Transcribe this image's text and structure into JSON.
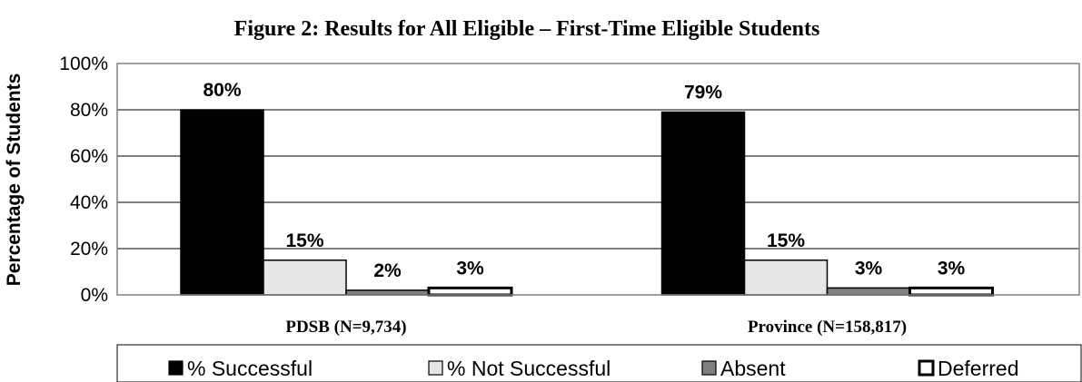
{
  "chart_data": {
    "type": "bar",
    "title": "Figure 2:  Results for All Eligible – First-Time Eligible Students",
    "xlabel": "",
    "ylabel": "Percentage of Students",
    "ylim": [
      0,
      100
    ],
    "yticks": [
      "0%",
      "20%",
      "40%",
      "60%",
      "80%",
      "100%"
    ],
    "grid": true,
    "legend_position": "bottom",
    "categories": [
      "PDSB (N=9,734)",
      "Province (N=158,817)"
    ],
    "series": [
      {
        "name": "% Successful",
        "values": [
          80,
          79
        ],
        "labels": [
          "80%",
          "79%"
        ],
        "color": "#000000",
        "border": "#000000"
      },
      {
        "name": "% Not Successful",
        "values": [
          15,
          15
        ],
        "labels": [
          "15%",
          "15%"
        ],
        "color": "#e6e6e6",
        "border": "#000000"
      },
      {
        "name": "Absent",
        "values": [
          2,
          3
        ],
        "labels": [
          "2%",
          "3%"
        ],
        "color": "#808080",
        "border": "#000000"
      },
      {
        "name": "Deferred",
        "values": [
          3,
          3
        ],
        "labels": [
          "3%",
          "3%"
        ],
        "color": "#ffffff",
        "border": "#000000"
      }
    ]
  }
}
